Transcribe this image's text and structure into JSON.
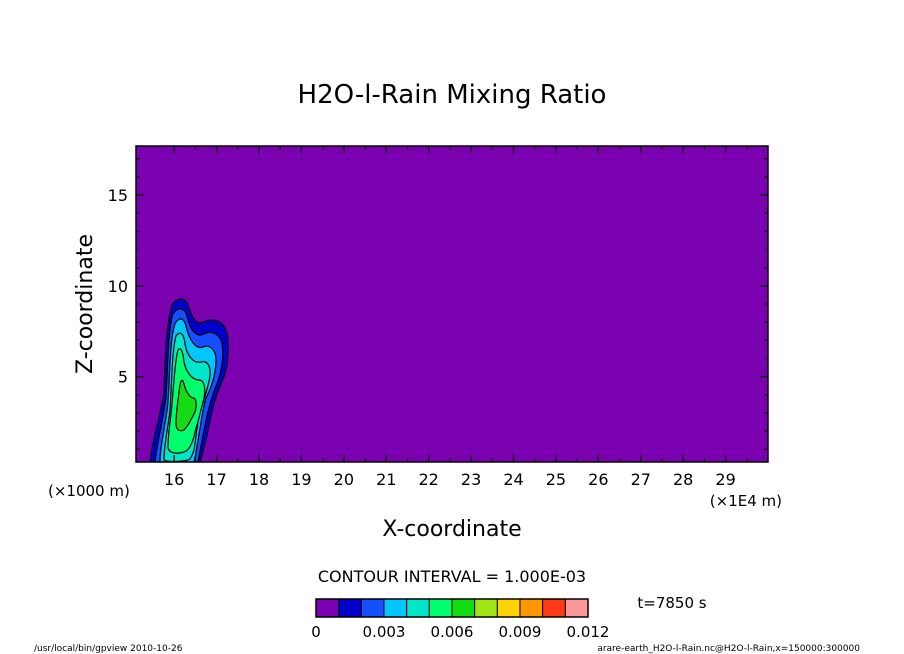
{
  "chart_data": {
    "type": "heatmap",
    "title": "H2O-l-Rain Mixing Ratio",
    "xlabel": "X-coordinate",
    "ylabel": "Z-coordinate",
    "x_unit_left": "(×1000 m)",
    "x_unit_right": "(×1E4 m)",
    "xlim": [
      15.1,
      30.0
    ],
    "ylim": [
      0.3,
      17.7
    ],
    "x_ticks": [
      16,
      17,
      18,
      19,
      20,
      21,
      22,
      23,
      24,
      25,
      26,
      27,
      28,
      29
    ],
    "y_ticks": [
      5,
      10,
      15
    ],
    "contour_interval_text": "CONTOUR INTERVAL = 1.000E-03",
    "time_text": "t=7850 s",
    "colorbar": {
      "levels": [
        0,
        0.001,
        0.002,
        0.003,
        0.004,
        0.005,
        0.006,
        0.007,
        0.008,
        0.009,
        0.01,
        0.011,
        0.012
      ],
      "tick_labels": [
        "0",
        "0.003",
        "0.006",
        "0.009",
        "0.012"
      ],
      "colors": [
        "#7a00b0",
        "#0000cc",
        "#1450ff",
        "#00c8ff",
        "#00e6c8",
        "#00ff6e",
        "#14dc14",
        "#a0e614",
        "#ffd200",
        "#ff9600",
        "#ff3c14",
        "#ff9696"
      ]
    },
    "field_summary": "rain water concentrated near x = 15.4–17.2 (×1E4 m), z = 0.3–9.3 km, max about 0.005–0.006",
    "footer_left": "/usr/local/bin/gpview  2010-10-26",
    "footer_right": "arare-earth_H2O-l-Rain.nc@H2O-l-Rain,x=150000:300000"
  }
}
